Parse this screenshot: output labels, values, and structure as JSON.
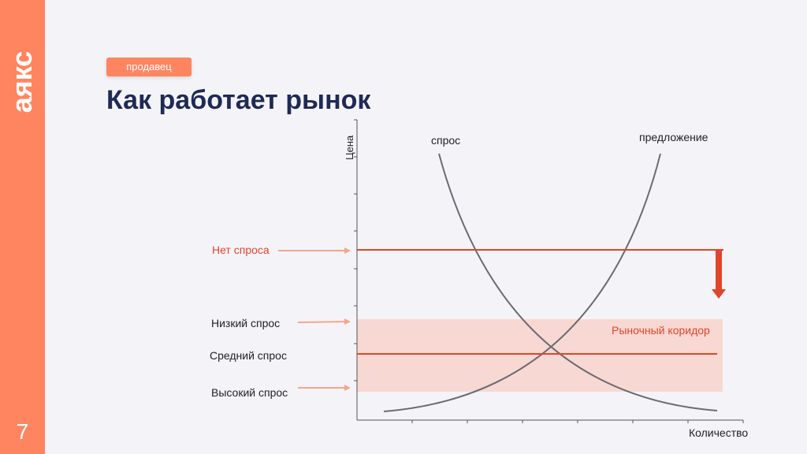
{
  "brand": {
    "logo_text": "аякс",
    "color": "#ff8560"
  },
  "slide": {
    "number": "7",
    "tag": "продавец",
    "title": "Как работает рынок"
  },
  "chart_data": {
    "type": "line",
    "xlabel": "Количество",
    "ylabel": "Цена",
    "series": [
      {
        "name": "спрос",
        "color": "#6b6b73"
      },
      {
        "name": "предложение",
        "color": "#6b6b73"
      }
    ],
    "levels": [
      {
        "label": "Нет спроса",
        "color": "#e0452b"
      },
      {
        "label": "Низкий спрос",
        "color": "#ff8560"
      },
      {
        "label": "Средний спрос",
        "color": "#e0452b"
      },
      {
        "label": "Высокий спрос",
        "color": "#ff8560"
      }
    ],
    "band": {
      "label": "Рыночный коридор",
      "color": "#f8d8d2",
      "text_color": "#e0452b"
    },
    "arrow_color": "#e0452b"
  }
}
